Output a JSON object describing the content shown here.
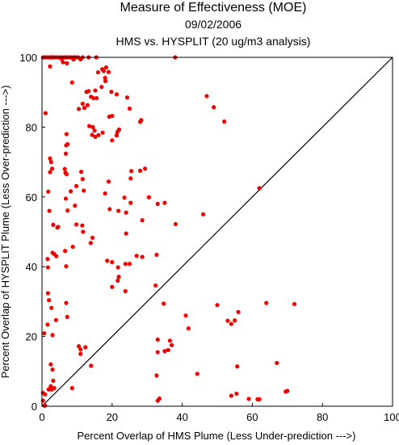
{
  "chart_data": {
    "type": "scatter",
    "title": "Measure of Effectiveness (MOE)",
    "date": "09/02/2006",
    "subtitle": "HMS vs. HYSPLIT  (20 ug/m3 analysis)",
    "xlabel": "Percent Overlap of HMS Plume (Less Under-prediction --->)",
    "ylabel": "Percent Overlap of HYSPLIT Plume (Less Over-prediction --->)",
    "xlim": [
      0,
      100
    ],
    "ylim": [
      0,
      100
    ],
    "xticks": [
      0,
      20,
      40,
      60,
      80,
      100
    ],
    "yticks": [
      0,
      20,
      40,
      60,
      80,
      100
    ],
    "xtick_labels": [
      "0",
      "20",
      "40",
      "60",
      "80",
      "100"
    ],
    "ytick_labels": [
      "0",
      "20",
      "40",
      "60",
      "80",
      "100"
    ],
    "grid": false,
    "reference_line": "y = x",
    "point_color": "#ee0000",
    "points": [
      [
        0.3,
        100
      ],
      [
        0.8,
        100
      ],
      [
        1.3,
        100
      ],
      [
        2.0,
        100
      ],
      [
        2.5,
        100
      ],
      [
        3.0,
        100
      ],
      [
        3.5,
        100
      ],
      [
        4.2,
        100
      ],
      [
        4.9,
        100
      ],
      [
        5.6,
        100
      ],
      [
        6.4,
        100
      ],
      [
        7.0,
        100
      ],
      [
        7.6,
        100
      ],
      [
        8.3,
        100
      ],
      [
        9.0,
        100
      ],
      [
        9.6,
        100
      ],
      [
        10.3,
        100
      ],
      [
        11.6,
        100
      ],
      [
        13.3,
        100
      ],
      [
        15.5,
        100
      ],
      [
        38.0,
        100
      ],
      [
        2.3,
        97.4
      ],
      [
        5.6,
        99.5
      ],
      [
        6.0,
        98.6
      ],
      [
        7.1,
        98.3
      ],
      [
        8.6,
        92.8
      ],
      [
        9.0,
        99.4
      ],
      [
        11.0,
        99.4
      ],
      [
        16.0,
        95.7
      ],
      [
        17.2,
        96.6
      ],
      [
        17.6,
        96.1
      ],
      [
        18.0,
        94.1
      ],
      [
        18.3,
        97.1
      ],
      [
        19.0,
        95.8
      ],
      [
        15.2,
        90.5
      ],
      [
        17.0,
        91.5
      ],
      [
        18.1,
        93.2
      ],
      [
        19.8,
        90.1
      ],
      [
        21.3,
        89.4
      ],
      [
        24.3,
        88.5
      ],
      [
        12.7,
        90.1
      ],
      [
        13.3,
        90.3
      ],
      [
        14.0,
        88.7
      ],
      [
        14.7,
        88.3
      ],
      [
        15.6,
        88.3
      ],
      [
        11.6,
        86.7
      ],
      [
        10.5,
        85.2
      ],
      [
        12.1,
        85.5
      ],
      [
        13.0,
        86.3
      ],
      [
        25.0,
        85.3
      ],
      [
        1.0,
        84.0
      ],
      [
        47.0,
        88.9
      ],
      [
        49.0,
        85.7
      ],
      [
        52.0,
        81.6
      ],
      [
        19.2,
        83.0
      ],
      [
        20.0,
        83.2
      ],
      [
        28.0,
        81.5
      ],
      [
        28.3,
        82.0
      ],
      [
        13.5,
        80.3
      ],
      [
        14.5,
        80.0
      ],
      [
        15.0,
        79.0
      ],
      [
        14.3,
        77.8
      ],
      [
        15.2,
        77.2
      ],
      [
        16.1,
        77.7
      ],
      [
        17.3,
        78.4
      ],
      [
        7.0,
        78.0
      ],
      [
        7.3,
        75.1
      ],
      [
        6.9,
        74.8
      ],
      [
        6.8,
        72.4
      ],
      [
        22.0,
        79.3
      ],
      [
        21.5,
        78.6
      ],
      [
        21.3,
        77.6
      ],
      [
        20.0,
        76.2
      ],
      [
        2.3,
        71.0
      ],
      [
        2.6,
        70.0
      ],
      [
        2.9,
        68.1
      ],
      [
        2.3,
        67.1
      ],
      [
        6.5,
        68.0
      ],
      [
        6.7,
        66.9
      ],
      [
        7.0,
        66.5
      ],
      [
        11.2,
        67.2
      ],
      [
        11.6,
        65.1
      ],
      [
        25.3,
        65.3
      ],
      [
        25.5,
        67.4
      ],
      [
        28.0,
        67.5
      ],
      [
        29.4,
        68.1
      ],
      [
        9.8,
        63.1
      ],
      [
        11.9,
        61.8
      ],
      [
        19.0,
        64.4
      ],
      [
        18.0,
        61.0
      ],
      [
        62.0,
        62.5
      ],
      [
        1.8,
        61.5
      ],
      [
        6.8,
        59.5
      ],
      [
        8.2,
        61.6
      ],
      [
        23.5,
        59.8
      ],
      [
        25.3,
        58.3
      ],
      [
        30.5,
        59.9
      ],
      [
        33.0,
        58.0
      ],
      [
        35.0,
        58.3
      ],
      [
        2.1,
        56.0
      ],
      [
        7.3,
        56.1
      ],
      [
        9.4,
        57.5
      ],
      [
        19.3,
        56.5
      ],
      [
        21.8,
        56.0
      ],
      [
        24.0,
        55.5
      ],
      [
        46.0,
        55.0
      ],
      [
        3.2,
        52.0
      ],
      [
        4.4,
        51.2
      ],
      [
        4.6,
        51.4
      ],
      [
        9.8,
        52.1
      ],
      [
        11.5,
        51.8
      ],
      [
        11.7,
        50.0
      ],
      [
        24.0,
        49.5
      ],
      [
        28.6,
        53.3
      ],
      [
        38.1,
        52.2
      ],
      [
        8.8,
        45.7
      ],
      [
        13.9,
        46.8
      ],
      [
        14.4,
        48.3
      ],
      [
        3.0,
        44.0
      ],
      [
        3.5,
        43.6
      ],
      [
        4.1,
        43.0
      ],
      [
        1.6,
        42.2
      ],
      [
        6.6,
        44.5
      ],
      [
        18.6,
        41.7
      ],
      [
        20.0,
        41.3
      ],
      [
        21.7,
        39.8
      ],
      [
        25.0,
        40.8
      ],
      [
        27.0,
        43.1
      ],
      [
        28.6,
        42.8
      ],
      [
        32.7,
        43.4
      ],
      [
        1.7,
        39.8
      ],
      [
        6.9,
        40.1
      ],
      [
        21.9,
        37.1
      ],
      [
        21.6,
        36.0
      ],
      [
        20.0,
        34.2
      ],
      [
        23.8,
        33.0
      ],
      [
        32.4,
        34.6
      ],
      [
        23.8,
        40.8
      ],
      [
        1.7,
        32.4
      ],
      [
        2.0,
        30.4
      ],
      [
        6.9,
        29.6
      ],
      [
        7.2,
        25.6
      ],
      [
        2.7,
        28.2
      ],
      [
        4.0,
        24.7
      ],
      [
        1.6,
        23.4
      ],
      [
        3.0,
        20.4
      ],
      [
        0.6,
        20.9
      ],
      [
        34.7,
        29.4
      ],
      [
        41.0,
        26.0
      ],
      [
        41.8,
        22.3
      ],
      [
        50.0,
        29.0
      ],
      [
        53.0,
        24.5
      ],
      [
        54.0,
        23.6
      ],
      [
        55.0,
        24.6
      ],
      [
        56.0,
        27.0
      ],
      [
        64.0,
        29.6
      ],
      [
        72.0,
        29.3
      ],
      [
        33.0,
        19.1
      ],
      [
        33.0,
        15.5
      ],
      [
        35.0,
        15.8
      ],
      [
        36.0,
        16.1
      ],
      [
        37.0,
        17.5
      ],
      [
        36.5,
        18.8
      ],
      [
        10.5,
        17.2
      ],
      [
        11.0,
        16.3
      ],
      [
        12.4,
        16.9
      ],
      [
        11.0,
        15.0
      ],
      [
        14.0,
        11.6
      ],
      [
        2.5,
        12.0
      ],
      [
        3.0,
        10.5
      ],
      [
        3.2,
        7.3
      ],
      [
        2.5,
        5.7
      ],
      [
        1.9,
        4.8
      ],
      [
        2.8,
        4.8
      ],
      [
        3.5,
        5.2
      ],
      [
        8.6,
        5.2
      ],
      [
        0.3,
        3.8
      ],
      [
        0.9,
        3.4
      ],
      [
        0.3,
        1.6
      ],
      [
        0.6,
        0.2
      ],
      [
        0.9,
        0.2
      ],
      [
        44.3,
        9.3
      ],
      [
        32.7,
        8.8
      ],
      [
        55.7,
        11.4
      ],
      [
        67.0,
        12.4
      ],
      [
        33.0,
        1.6
      ],
      [
        33.5,
        2.2
      ],
      [
        54.0,
        3.0
      ],
      [
        55.5,
        3.6
      ],
      [
        59.0,
        2.1
      ],
      [
        61.5,
        2.0
      ],
      [
        62.0,
        2.0
      ],
      [
        69.5,
        4.2
      ],
      [
        70.0,
        4.4
      ]
    ]
  }
}
